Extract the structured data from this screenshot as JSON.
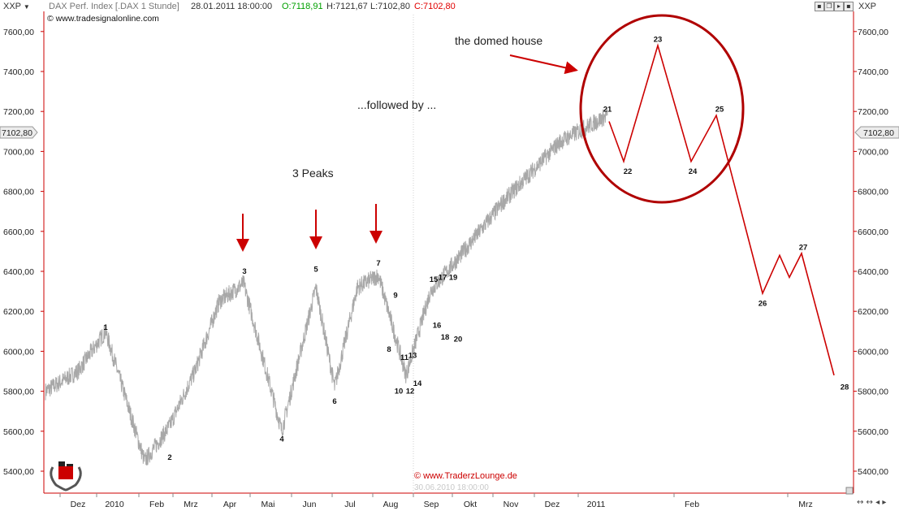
{
  "header": {
    "symbol": "XXP",
    "title": "DAX Perf. Index [.DAX 1 Stunde]",
    "datetime": "28.01.2011 18:00:00",
    "open": "O:7118,91",
    "high": "H:7121,67",
    "low": "L:7102,80",
    "close": "C:7102,80",
    "source": "www.tradesignalonline.com",
    "right_symbol": "XXP",
    "colors": {
      "open": "#00a000",
      "close": "#e00000",
      "accent": "#cc0000"
    }
  },
  "watermark": {
    "credit": "© www.TraderzLounge.de",
    "date": "30.06.2010 18:00:00"
  },
  "chart_data": {
    "type": "line",
    "y_axis": {
      "range": [
        5300,
        7780
      ],
      "ticks": [
        "5400,00",
        "5600,00",
        "5800,00",
        "6000,00",
        "6200,00",
        "6400,00",
        "6600,00",
        "6800,00",
        "7000,00",
        "7200,00",
        "7400,00",
        "7600,00"
      ],
      "last_value": "7102,80"
    },
    "x_axis": {
      "labels": [
        "Dez",
        "2010",
        "Feb",
        "Mrz",
        "Apr",
        "Mai",
        "Jun",
        "Jul",
        "Aug",
        "Sep",
        "Okt",
        "Nov",
        "Dez",
        "2011",
        "Feb",
        "Mrz"
      ]
    },
    "price_series": {
      "color": "#a8a8a8",
      "points": [
        [
          "Nov 2009",
          5800
        ],
        [
          "Dez",
          5900
        ],
        [
          "2010",
          6100
        ],
        [
          "Feb",
          5450
        ],
        [
          "Feb",
          5620
        ],
        [
          "Mrz",
          5900
        ],
        [
          "Apr",
          6250
        ],
        [
          "Apr",
          6340
        ],
        [
          "Mai",
          5600
        ],
        [
          "Jun",
          6320
        ],
        [
          "Jul",
          5820
        ],
        [
          "Jul",
          6320
        ],
        [
          "Aug",
          6380
        ],
        [
          "Aug",
          5880
        ],
        [
          "Sep",
          6300
        ],
        [
          "Okt",
          6520
        ],
        [
          "Nov",
          6750
        ],
        [
          "Dez",
          7050
        ],
        [
          "2011",
          7180
        ]
      ]
    },
    "projection": {
      "color": "#cc0000",
      "points": [
        [
          "21",
          7150
        ],
        [
          "22",
          6950
        ],
        [
          "23",
          7530
        ],
        [
          "24",
          6950
        ],
        [
          "25",
          7180
        ],
        [
          "26",
          6290
        ],
        [
          "",
          6480
        ],
        [
          "",
          6370
        ],
        [
          "27",
          6490
        ],
        [
          "28",
          5880
        ]
      ]
    },
    "wave_labels": [
      {
        "t": "1",
        "v": 6120
      },
      {
        "t": "2",
        "v": 5470
      },
      {
        "t": "3",
        "v": 6400
      },
      {
        "t": "4",
        "v": 5560
      },
      {
        "t": "5",
        "v": 6410
      },
      {
        "t": "6",
        "v": 5750
      },
      {
        "t": "7",
        "v": 6440
      },
      {
        "t": "8",
        "v": 6010
      },
      {
        "t": "9",
        "v": 6280
      },
      {
        "t": "10",
        "v": 5800
      },
      {
        "t": "11",
        "v": 5970
      },
      {
        "t": "12",
        "v": 5800
      },
      {
        "t": "13",
        "v": 5980
      },
      {
        "t": "14",
        "v": 5840
      },
      {
        "t": "15",
        "v": 6360
      },
      {
        "t": "16",
        "v": 6130
      },
      {
        "t": "17",
        "v": 6370
      },
      {
        "t": "18",
        "v": 6070
      },
      {
        "t": "19",
        "v": 6370
      },
      {
        "t": "20",
        "v": 6060
      },
      {
        "t": "21",
        "v": 7210
      },
      {
        "t": "22",
        "v": 6900
      },
      {
        "t": "23",
        "v": 7560
      },
      {
        "t": "24",
        "v": 6900
      },
      {
        "t": "25",
        "v": 7210
      },
      {
        "t": "26",
        "v": 6240
      },
      {
        "t": "27",
        "v": 6520
      },
      {
        "t": "28",
        "v": 5820
      }
    ],
    "annotations": {
      "domed_house": "the domed house",
      "followed_by": "...followed by ...",
      "three_peaks": "3 Peaks"
    }
  }
}
